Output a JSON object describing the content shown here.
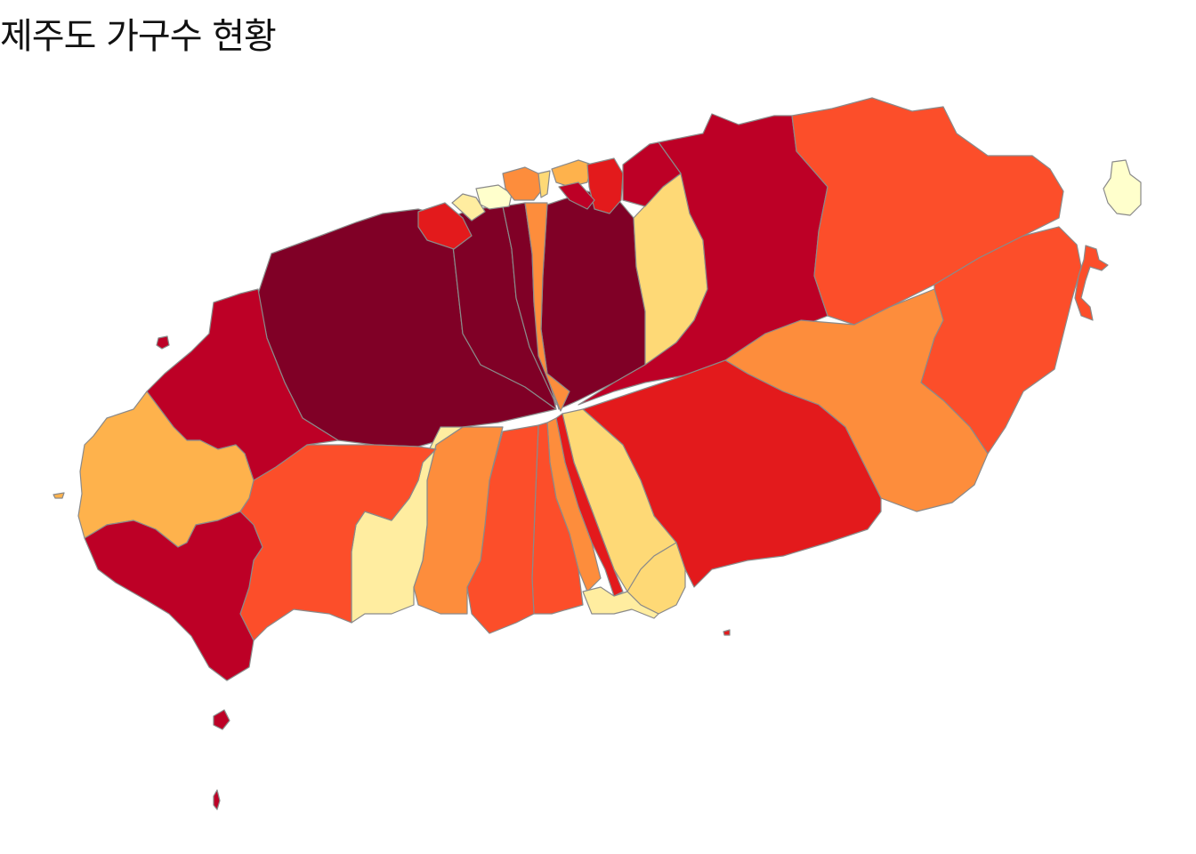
{
  "title": "제주도 가구수 현황",
  "palette": {
    "c1": "#ffffcc",
    "c2": "#ffeda0",
    "c3": "#fed976",
    "c4": "#feb24c",
    "c5": "#fd8d3c",
    "c6": "#fc4e2a",
    "c7": "#e31a1c",
    "c8": "#bd0026",
    "c9": "#800026"
  },
  "boundary_color": "#8a8a8a"
}
